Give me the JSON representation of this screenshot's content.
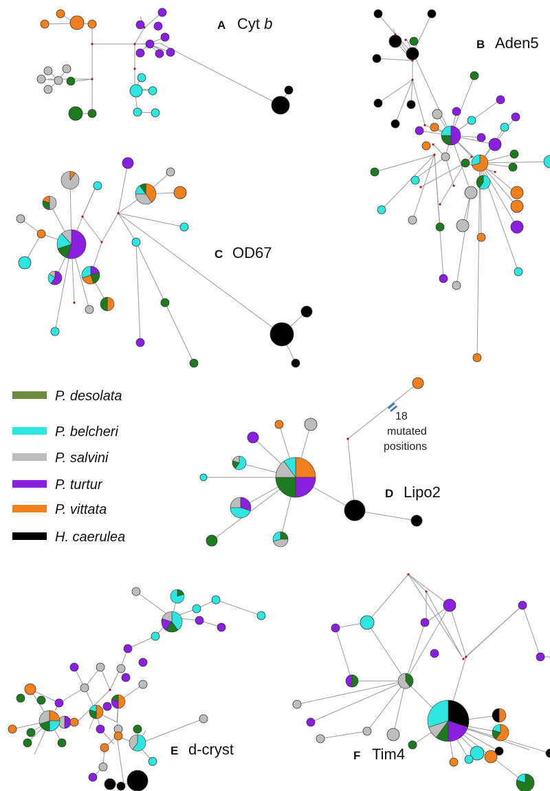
{
  "colors": {
    "desolata": "#1e7a1e",
    "belcheri": "#2fe5e0",
    "salvini": "#bdbdbd",
    "turtur": "#8a1fe0",
    "vittata": "#f07f1e",
    "caerulea": "#000000",
    "desolata_legend": "#6e8b3d",
    "median": "#b01818",
    "edge": "#9a9a9a",
    "mutation_marker": "#3f73b8"
  },
  "panels": [
    {
      "letter": "A",
      "gene": "Cyt",
      "gene_italic": "b"
    },
    {
      "letter": "B",
      "gene": "Aden5",
      "gene_italic": ""
    },
    {
      "letter": "C",
      "gene": "OD67",
      "gene_italic": ""
    },
    {
      "letter": "D",
      "gene": "Lipo2",
      "gene_italic": ""
    },
    {
      "letter": "E",
      "gene": "d-cryst",
      "gene_italic": ""
    },
    {
      "letter": "F",
      "gene": "Tim4",
      "gene_italic": ""
    }
  ],
  "legend": [
    {
      "key": "desolata",
      "label": "P. desolata",
      "color": "#6e8b3d"
    },
    {
      "key": "belcheri",
      "label": "P. belcheri",
      "color": "#2fe5e0"
    },
    {
      "key": "salvini",
      "label": "P. salvini",
      "color": "#bdbdbd"
    },
    {
      "key": "turtur",
      "label": "P. turtur",
      "color": "#8a1fe0"
    },
    {
      "key": "vittata",
      "label": "P. vittata",
      "color": "#f07f1e"
    },
    {
      "key": "caerulea",
      "label": "H. caerulea",
      "color": "#000000"
    }
  ],
  "mutation_note": {
    "line1": "18",
    "line2": "mutated",
    "line3": "positions"
  }
}
